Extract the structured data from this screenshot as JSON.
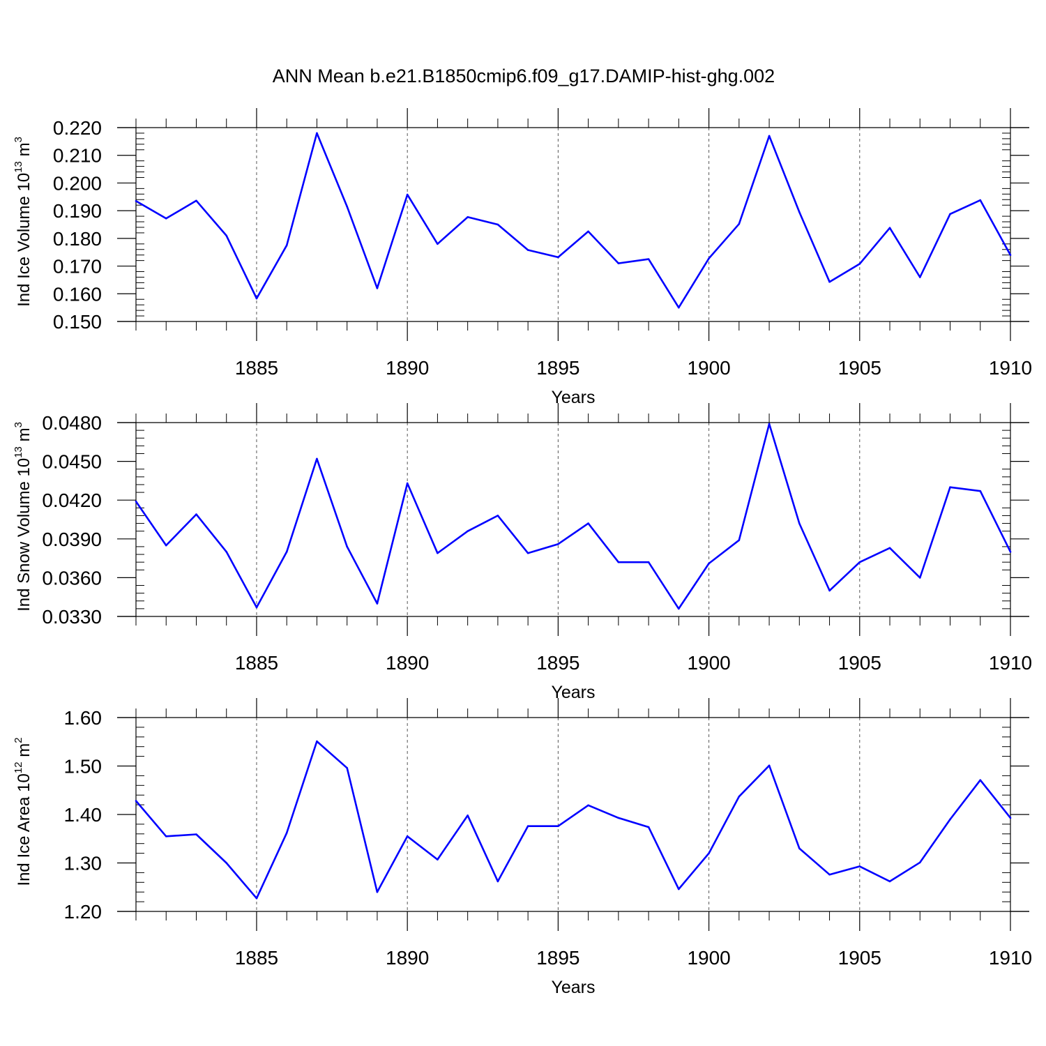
{
  "title": "ANN Mean b.e21.B1850cmip6.f09_g17.DAMIP-hist-ghg.002",
  "colors": {
    "line": "#0000ff",
    "axis": "#000000",
    "grid": "#555555"
  },
  "chart_data": [
    {
      "type": "line",
      "xlabel": "Years",
      "ylabel": {
        "text": "Ind Ice Volume 10",
        "exponent": "13",
        "unit": "m",
        "unit_exponent": "3"
      },
      "xlim": [
        1881,
        1910
      ],
      "ylim": [
        0.15,
        0.22
      ],
      "yticks": [
        "0.150",
        "0.160",
        "0.170",
        "0.180",
        "0.190",
        "0.200",
        "0.210",
        "0.220"
      ],
      "xticks": [
        "1885",
        "1890",
        "1895",
        "1900",
        "1905",
        "1910"
      ],
      "grid": "vertical dashed at labeled x ticks",
      "x": [
        1881,
        1882,
        1883,
        1884,
        1885,
        1886,
        1887,
        1888,
        1889,
        1890,
        1891,
        1892,
        1893,
        1894,
        1895,
        1896,
        1897,
        1898,
        1899,
        1900,
        1901,
        1902,
        1903,
        1904,
        1905,
        1906,
        1907,
        1908,
        1909,
        1910
      ],
      "values": [
        0.1935,
        0.1872,
        0.1936,
        0.181,
        0.1583,
        0.1775,
        0.218,
        0.1915,
        0.162,
        0.1958,
        0.178,
        0.1877,
        0.185,
        0.1758,
        0.1732,
        0.1825,
        0.171,
        0.1725,
        0.155,
        0.1728,
        0.1852,
        0.217,
        0.1895,
        0.1643,
        0.1708,
        0.1838,
        0.166,
        0.1888,
        0.1938,
        0.174
      ]
    },
    {
      "type": "line",
      "xlabel": "Years",
      "ylabel": {
        "text": "Ind Snow Volume 10",
        "exponent": "13",
        "unit": "m",
        "unit_exponent": "3"
      },
      "xlim": [
        1881,
        1910
      ],
      "ylim": [
        0.033,
        0.048
      ],
      "yticks": [
        "0.0330",
        "0.0360",
        "0.0390",
        "0.0420",
        "0.0450",
        "0.0480"
      ],
      "xticks": [
        "1885",
        "1890",
        "1895",
        "1900",
        "1905",
        "1910"
      ],
      "grid": "vertical dashed at labeled x ticks",
      "x": [
        1881,
        1882,
        1883,
        1884,
        1885,
        1886,
        1887,
        1888,
        1889,
        1890,
        1891,
        1892,
        1893,
        1894,
        1895,
        1896,
        1897,
        1898,
        1899,
        1900,
        1901,
        1902,
        1903,
        1904,
        1905,
        1906,
        1907,
        1908,
        1909,
        1910
      ],
      "values": [
        0.0419,
        0.0385,
        0.0409,
        0.038,
        0.0337,
        0.038,
        0.0452,
        0.0384,
        0.034,
        0.0433,
        0.0379,
        0.0396,
        0.0408,
        0.0379,
        0.0386,
        0.0402,
        0.0372,
        0.0372,
        0.0336,
        0.0371,
        0.0389,
        0.0479,
        0.0402,
        0.035,
        0.0372,
        0.0383,
        0.036,
        0.043,
        0.0427,
        0.038
      ]
    },
    {
      "type": "line",
      "xlabel": "Years",
      "ylabel": {
        "text": "Ind Ice Area 10",
        "exponent": "12",
        "unit": "m",
        "unit_exponent": "2"
      },
      "xlim": [
        1881,
        1910
      ],
      "ylim": [
        1.2,
        1.6
      ],
      "yticks": [
        "1.20",
        "1.30",
        "1.40",
        "1.50",
        "1.60"
      ],
      "xticks": [
        "1885",
        "1890",
        "1895",
        "1900",
        "1905",
        "1910"
      ],
      "grid": "vertical dashed at labeled x ticks",
      "x": [
        1881,
        1882,
        1883,
        1884,
        1885,
        1886,
        1887,
        1888,
        1889,
        1890,
        1891,
        1892,
        1893,
        1894,
        1895,
        1896,
        1897,
        1898,
        1899,
        1900,
        1901,
        1902,
        1903,
        1904,
        1905,
        1906,
        1907,
        1908,
        1909,
        1910
      ],
      "values": [
        1.428,
        1.355,
        1.359,
        1.3,
        1.227,
        1.362,
        1.551,
        1.496,
        1.24,
        1.355,
        1.307,
        1.398,
        1.262,
        1.376,
        1.376,
        1.419,
        1.393,
        1.374,
        1.246,
        1.32,
        1.437,
        1.501,
        1.33,
        1.276,
        1.293,
        1.262,
        1.301,
        1.39,
        1.471,
        1.393
      ]
    }
  ]
}
